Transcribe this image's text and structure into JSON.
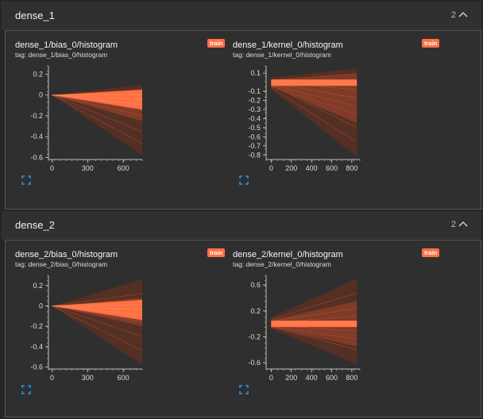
{
  "groups": [
    {
      "title": "dense_1",
      "count": "2",
      "panels": [
        {
          "title": "dense_1/bias_0/histogram",
          "tag": "tag: dense_1/bias_0/histogram",
          "run": "train",
          "chart_data": {
            "type": "area",
            "title": "dense_1/bias_0/histogram",
            "x_ticks": [
              0,
              300,
              600
            ],
            "y_ticks": [
              0.2,
              0,
              -0.2,
              -0.4,
              -0.6
            ],
            "xlim": [
              -30,
              760
            ],
            "ylim": [
              -0.62,
              0.28
            ],
            "series": [
              {
                "x": [
                  0,
                  760
                ],
                "lower": [
                  0,
                  -0.58
                ],
                "upper": [
                  0,
                  0.1
                ]
              },
              {
                "x": [
                  0,
                  760
                ],
                "lower": [
                  0,
                  -0.25
                ],
                "upper": [
                  0,
                  0.06
                ]
              },
              {
                "x": [
                  0,
                  760
                ],
                "lower": [
                  0,
                  -0.14
                ],
                "upper": [
                  0,
                  0.05
                ]
              }
            ]
          }
        },
        {
          "title": "dense_1/kernel_0/histogram",
          "tag": "tag: dense_1/kernel_0/histogram",
          "run": "train",
          "chart_data": {
            "type": "area",
            "title": "dense_1/kernel_0/histogram",
            "x_ticks": [
              0,
              200,
              400,
              600,
              800
            ],
            "y_ticks": [
              0.1,
              -0.1,
              -0.2,
              -0.3,
              -0.4,
              -0.5,
              -0.6,
              -0.7,
              -0.8
            ],
            "xlim": [
              -50,
              880
            ],
            "ylim": [
              -0.85,
              0.18
            ],
            "series": [
              {
                "x": [
                  0,
                  850
                ],
                "lower": [
                  -0.08,
                  -0.82
                ],
                "upper": [
                  0.05,
                  0.15
                ]
              },
              {
                "x": [
                  0,
                  850
                ],
                "lower": [
                  -0.05,
                  -0.45
                ],
                "upper": [
                  0.03,
                  0.1
                ]
              },
              {
                "x": [
                  0,
                  850
                ],
                "lower": [
                  -0.04,
                  -0.04
                ],
                "upper": [
                  0.03,
                  0.03
                ]
              }
            ]
          }
        }
      ]
    },
    {
      "title": "dense_2",
      "count": "2",
      "panels": [
        {
          "title": "dense_2/bias_0/histogram",
          "tag": "tag: dense_2/bias_0/histogram",
          "run": "train",
          "chart_data": {
            "type": "area",
            "title": "dense_2/bias_0/histogram",
            "x_ticks": [
              0,
              300,
              600
            ],
            "y_ticks": [
              0.2,
              0,
              -0.2,
              -0.4,
              -0.6
            ],
            "xlim": [
              -30,
              760
            ],
            "ylim": [
              -0.62,
              0.3
            ],
            "series": [
              {
                "x": [
                  0,
                  760
                ],
                "lower": [
                  0,
                  -0.58
                ],
                "upper": [
                  0,
                  0.26
                ]
              },
              {
                "x": [
                  0,
                  760
                ],
                "lower": [
                  0,
                  -0.2
                ],
                "upper": [
                  0,
                  0.08
                ]
              },
              {
                "x": [
                  0,
                  760
                ],
                "lower": [
                  0,
                  -0.14
                ],
                "upper": [
                  0,
                  0.06
                ]
              }
            ]
          }
        },
        {
          "title": "dense_2/kernel_0/histogram",
          "tag": "tag: dense_2/kernel_0/histogram",
          "run": "train",
          "chart_data": {
            "type": "area",
            "title": "dense_2/kernel_0/histogram",
            "x_ticks": [
              0,
              200,
              400,
              600,
              800
            ],
            "y_ticks": [
              0.6,
              0.2,
              -0.2,
              -0.6
            ],
            "xlim": [
              -50,
              880
            ],
            "ylim": [
              -0.7,
              0.75
            ],
            "series": [
              {
                "x": [
                  0,
                  850
                ],
                "lower": [
                  -0.08,
                  -0.62
                ],
                "upper": [
                  0.1,
                  0.7
                ]
              },
              {
                "x": [
                  0,
                  850
                ],
                "lower": [
                  -0.06,
                  -0.35
                ],
                "upper": [
                  0.06,
                  0.35
                ]
              },
              {
                "x": [
                  0,
                  850
                ],
                "lower": [
                  -0.05,
                  -0.05
                ],
                "upper": [
                  0.05,
                  0.05
                ]
              }
            ]
          }
        }
      ]
    }
  ],
  "colors": {
    "background": "#262626",
    "header": "#303030",
    "accent": "#ff7043",
    "band_dark": "#5a2f22",
    "band_mid": "#8a3f28",
    "band_core": "#ff7043",
    "expand_icon": "#2196f3"
  },
  "icons": {
    "collapse": "chevron-up-icon",
    "expand": "fullscreen-icon"
  }
}
